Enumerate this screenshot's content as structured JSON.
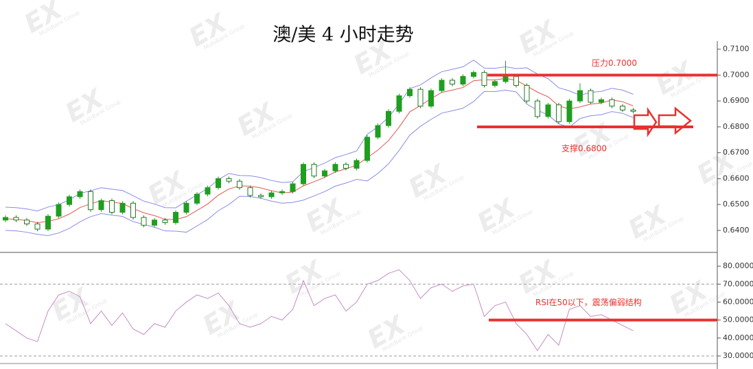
{
  "watermark": {
    "mark": "EX",
    "group": "MultiBank Group"
  },
  "chart_data": [
    {
      "type": "candlestick",
      "title": "澳/美 4 小时走势",
      "ylim": [
        0.6315,
        0.729
      ],
      "yticks": [
        {
          "value": 0.64,
          "label": "0.6400"
        },
        {
          "value": 0.65,
          "label": "0.6500"
        },
        {
          "value": 0.66,
          "label": "0.6600"
        },
        {
          "value": 0.67,
          "label": "0.6700"
        },
        {
          "value": 0.68,
          "label": "0.6800"
        },
        {
          "value": 0.69,
          "label": "0.6900"
        },
        {
          "value": 0.7,
          "label": "0.7000"
        },
        {
          "value": 0.71,
          "label": "0.7100"
        }
      ],
      "up_color": "#1f9e1f",
      "down_color": "#1f7a1f",
      "open": [
        0.644,
        0.645,
        0.644,
        0.6425,
        0.6405,
        0.6455,
        0.65,
        0.653,
        0.655,
        0.648,
        0.6515,
        0.647,
        0.6505,
        0.645,
        0.642,
        0.644,
        0.643,
        0.647,
        0.6505,
        0.654,
        0.6565,
        0.66,
        0.659,
        0.6565,
        0.6535,
        0.653,
        0.6545,
        0.655,
        0.658,
        0.6655,
        0.661,
        0.663,
        0.6655,
        0.664,
        0.667,
        0.676,
        0.6805,
        0.686,
        0.692,
        0.6945,
        0.688,
        0.694,
        0.698,
        0.6965,
        0.6995,
        0.701,
        0.696,
        0.6975,
        0.6995,
        0.696,
        0.69,
        0.684,
        0.6885,
        0.682,
        0.69,
        0.694,
        0.6895,
        0.6905,
        0.688,
        0.6865
      ],
      "high": [
        0.6458,
        0.6458,
        0.6448,
        0.6433,
        0.6463,
        0.6508,
        0.6538,
        0.6558,
        0.6558,
        0.6523,
        0.6523,
        0.6513,
        0.6513,
        0.6458,
        0.6448,
        0.6448,
        0.6478,
        0.6513,
        0.6548,
        0.6573,
        0.6608,
        0.6608,
        0.6598,
        0.6573,
        0.6543,
        0.6553,
        0.6558,
        0.6588,
        0.6663,
        0.6663,
        0.6638,
        0.6663,
        0.6663,
        0.6678,
        0.6768,
        0.6813,
        0.6868,
        0.6928,
        0.6953,
        0.6953,
        0.6948,
        0.6988,
        0.6988,
        0.7003,
        0.7018,
        0.7018,
        0.6983,
        0.7055,
        0.7003,
        0.6968,
        0.6908,
        0.6893,
        0.6893,
        0.6908,
        0.6968,
        0.6948,
        0.6913,
        0.6913,
        0.6888,
        0.6873
      ],
      "low": [
        0.6432,
        0.6432,
        0.6417,
        0.6397,
        0.6397,
        0.6447,
        0.6492,
        0.6522,
        0.6472,
        0.6472,
        0.6462,
        0.6462,
        0.6442,
        0.6412,
        0.6412,
        0.6422,
        0.6422,
        0.6462,
        0.6497,
        0.6532,
        0.6557,
        0.6582,
        0.6557,
        0.6527,
        0.6522,
        0.6522,
        0.6537,
        0.6542,
        0.6572,
        0.6602,
        0.6602,
        0.6622,
        0.6632,
        0.6632,
        0.6662,
        0.6752,
        0.6797,
        0.6852,
        0.6912,
        0.6872,
        0.6872,
        0.6932,
        0.6957,
        0.6957,
        0.6987,
        0.6952,
        0.6952,
        0.6967,
        0.6952,
        0.6892,
        0.6832,
        0.6832,
        0.6812,
        0.6812,
        0.6892,
        0.6887,
        0.6887,
        0.6872,
        0.6857,
        0.6852
      ],
      "close": [
        0.645,
        0.644,
        0.6425,
        0.6405,
        0.6455,
        0.65,
        0.653,
        0.655,
        0.648,
        0.6515,
        0.647,
        0.6505,
        0.645,
        0.642,
        0.644,
        0.643,
        0.647,
        0.6505,
        0.654,
        0.6565,
        0.66,
        0.659,
        0.6565,
        0.6535,
        0.653,
        0.6545,
        0.655,
        0.658,
        0.6655,
        0.661,
        0.663,
        0.6655,
        0.664,
        0.667,
        0.676,
        0.6805,
        0.686,
        0.692,
        0.6945,
        0.688,
        0.694,
        0.698,
        0.6965,
        0.6995,
        0.701,
        0.696,
        0.6975,
        0.6995,
        0.696,
        0.69,
        0.684,
        0.6885,
        0.682,
        0.69,
        0.694,
        0.6895,
        0.6905,
        0.688,
        0.6865,
        0.686
      ],
      "bands": {
        "band_color": "#8a8ae6",
        "middle_color": "#e0554f",
        "upper": [
          0.649,
          0.6488,
          0.6483,
          0.6475,
          0.649,
          0.65,
          0.6518,
          0.6543,
          0.6553,
          0.6565,
          0.6559,
          0.6554,
          0.6534,
          0.6513,
          0.6502,
          0.6488,
          0.6487,
          0.6513,
          0.6537,
          0.6562,
          0.6596,
          0.662,
          0.6612,
          0.6611,
          0.6604,
          0.6593,
          0.6585,
          0.6588,
          0.6627,
          0.6643,
          0.666,
          0.6681,
          0.6693,
          0.6707,
          0.6771,
          0.68,
          0.6837,
          0.6889,
          0.6948,
          0.6962,
          0.6989,
          0.7013,
          0.7022,
          0.7032,
          0.7058,
          0.7027,
          0.7026,
          0.7032,
          0.7025,
          0.7028,
          0.7004,
          0.6986,
          0.6951,
          0.6939,
          0.6922,
          0.6933,
          0.6937,
          0.6949,
          0.6942,
          0.6926
        ],
        "middle": [
          0.6445,
          0.6443,
          0.6438,
          0.643,
          0.6435,
          0.6445,
          0.6463,
          0.6488,
          0.6503,
          0.6515,
          0.6509,
          0.6504,
          0.6484,
          0.6468,
          0.6457,
          0.6443,
          0.6442,
          0.6453,
          0.6477,
          0.6502,
          0.6536,
          0.656,
          0.6572,
          0.6571,
          0.6564,
          0.6553,
          0.6545,
          0.6548,
          0.6572,
          0.6588,
          0.6605,
          0.6626,
          0.6638,
          0.6652,
          0.6681,
          0.671,
          0.6747,
          0.6799,
          0.6858,
          0.6882,
          0.6909,
          0.6933,
          0.6942,
          0.6952,
          0.6978,
          0.6982,
          0.6981,
          0.6987,
          0.698,
          0.6958,
          0.6934,
          0.6916,
          0.6881,
          0.6869,
          0.6877,
          0.6888,
          0.6892,
          0.6904,
          0.6897,
          0.6881
        ],
        "lower": [
          0.64,
          0.6398,
          0.6393,
          0.6385,
          0.638,
          0.639,
          0.6408,
          0.6433,
          0.6453,
          0.6465,
          0.6459,
          0.6454,
          0.6434,
          0.6423,
          0.6412,
          0.6398,
          0.6397,
          0.6393,
          0.6417,
          0.6442,
          0.6476,
          0.65,
          0.6532,
          0.6531,
          0.6524,
          0.6513,
          0.6505,
          0.6508,
          0.6517,
          0.6533,
          0.655,
          0.6571,
          0.6583,
          0.6597,
          0.6591,
          0.662,
          0.6657,
          0.6709,
          0.6768,
          0.6802,
          0.6829,
          0.6853,
          0.6862,
          0.6872,
          0.6898,
          0.6937,
          0.6936,
          0.6942,
          0.6935,
          0.6888,
          0.6864,
          0.6846,
          0.6811,
          0.6799,
          0.6832,
          0.6843,
          0.6847,
          0.6859,
          0.6852,
          0.6836
        ]
      },
      "annotations": [
        {
          "text": "压力0.7000",
          "value": 0.7,
          "color": "#e8312f"
        },
        {
          "text": "支撑0.6800",
          "value": 0.68,
          "color": "#e8312f"
        }
      ]
    },
    {
      "type": "line",
      "color": "#c48cc4",
      "ylim": [
        25.8,
        86.9
      ],
      "yticks": [
        {
          "value": 30,
          "label": "30.0000"
        },
        {
          "value": 40,
          "label": "40.0000"
        },
        {
          "value": 50,
          "label": "50.0000"
        },
        {
          "value": 60,
          "label": "60.0000"
        },
        {
          "value": 70,
          "label": "70.0000"
        },
        {
          "value": 80,
          "label": "80.0000"
        }
      ],
      "dashed_levels": [
        70,
        30
      ],
      "values": [
        48,
        44,
        40,
        38,
        55,
        64,
        66,
        63,
        48,
        55,
        47,
        54,
        45,
        42,
        48,
        46,
        55,
        60,
        64,
        62,
        65,
        58,
        48,
        46,
        48,
        52,
        50,
        56,
        72,
        58,
        62,
        64,
        55,
        60,
        70,
        72,
        76,
        78,
        72,
        62,
        68,
        70,
        66,
        69,
        70,
        52,
        58,
        60,
        48,
        42,
        33,
        42,
        36,
        56,
        58,
        52,
        53,
        50,
        47,
        44
      ],
      "annotations": [
        {
          "text": "RSI在50以下，震荡偏弱结构",
          "value": 50,
          "color": "#e8312f"
        }
      ]
    }
  ]
}
